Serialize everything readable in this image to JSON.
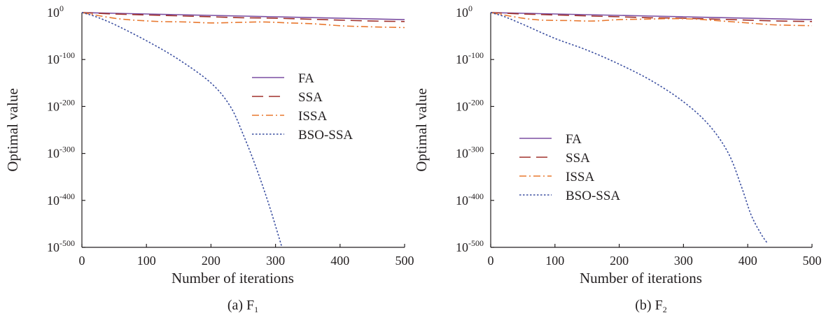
{
  "chart_data": [
    {
      "type": "line",
      "caption_prefix": "(a) F",
      "caption_sub": "1",
      "xlabel": "Number of iterations",
      "ylabel": "Optimal value",
      "yscale": "log",
      "xlim": [
        0,
        500
      ],
      "ylim_exp": [
        -500,
        0
      ],
      "xticks": [
        "0",
        "100",
        "200",
        "300",
        "400",
        "500"
      ],
      "yticks": [
        {
          "base": "10",
          "exp": "0",
          "value": 0
        },
        {
          "base": "10",
          "exp": "-100",
          "value": -100
        },
        {
          "base": "10",
          "exp": "-200",
          "value": -200
        },
        {
          "base": "10",
          "exp": "-300",
          "value": -300
        },
        {
          "base": "10",
          "exp": "-400",
          "value": -400
        },
        {
          "base": "10",
          "exp": "-500",
          "value": -500
        }
      ],
      "legend_position": "center-right",
      "series": [
        {
          "name": "FA",
          "color": "#7b4fa2",
          "dash": "solid",
          "x": [
            0,
            50,
            100,
            150,
            200,
            250,
            300,
            350,
            400,
            450,
            500
          ],
          "y_exp": [
            0,
            -1.5,
            -3,
            -4.5,
            -6,
            -7.5,
            -9,
            -10.5,
            -12,
            -13.5,
            -15
          ]
        },
        {
          "name": "SSA",
          "color": "#a0302b",
          "dash": "dashed",
          "x": [
            0,
            50,
            100,
            150,
            200,
            250,
            300,
            350,
            400,
            450,
            500
          ],
          "y_exp": [
            0,
            -3,
            -5,
            -7,
            -9,
            -11,
            -12,
            -14,
            -16,
            -18,
            -19
          ]
        },
        {
          "name": "ISSA",
          "color": "#e8782f",
          "dash": "dashdot",
          "x": [
            0,
            20,
            50,
            80,
            120,
            160,
            200,
            240,
            280,
            320,
            360,
            400,
            440,
            500
          ],
          "y_exp": [
            0,
            -5,
            -12,
            -16,
            -19,
            -20,
            -22,
            -21,
            -20,
            -22,
            -24,
            -28,
            -30,
            -32
          ]
        },
        {
          "name": "BSO-SSA",
          "color": "#3a4ea0",
          "dash": "dotted",
          "x": [
            0,
            20,
            50,
            100,
            150,
            200,
            230,
            250,
            270,
            290,
            310
          ],
          "y_exp": [
            0,
            -8,
            -25,
            -60,
            -100,
            -150,
            -200,
            -260,
            -330,
            -410,
            -500
          ]
        }
      ]
    },
    {
      "type": "line",
      "caption_prefix": "(b) F",
      "caption_sub": "2",
      "xlabel": "Number of iterations",
      "ylabel": "Optimal value",
      "yscale": "log",
      "xlim": [
        0,
        500
      ],
      "ylim_exp": [
        -500,
        0
      ],
      "xticks": [
        "0",
        "100",
        "200",
        "300",
        "400",
        "500"
      ],
      "yticks": [
        {
          "base": "10",
          "exp": "0",
          "value": 0
        },
        {
          "base": "10",
          "exp": "-100",
          "value": -100
        },
        {
          "base": "10",
          "exp": "-200",
          "value": -200
        },
        {
          "base": "10",
          "exp": "-300",
          "value": -300
        },
        {
          "base": "10",
          "exp": "-400",
          "value": -400
        },
        {
          "base": "10",
          "exp": "-500",
          "value": -500
        }
      ],
      "legend_position": "center-left",
      "series": [
        {
          "name": "FA",
          "color": "#7b4fa2",
          "dash": "solid",
          "x": [
            0,
            50,
            100,
            150,
            200,
            250,
            300,
            350,
            400,
            450,
            500
          ],
          "y_exp": [
            0,
            -1.5,
            -3,
            -4.5,
            -6,
            -7.5,
            -9,
            -10.5,
            -12,
            -13.5,
            -15
          ]
        },
        {
          "name": "SSA",
          "color": "#a0302b",
          "dash": "dashed",
          "x": [
            0,
            50,
            100,
            150,
            200,
            250,
            300,
            350,
            400,
            450,
            500
          ],
          "y_exp": [
            0,
            -3,
            -5,
            -7,
            -9,
            -11,
            -12,
            -14,
            -16,
            -18,
            -19
          ]
        },
        {
          "name": "ISSA",
          "color": "#e8782f",
          "dash": "dashdot",
          "x": [
            0,
            20,
            50,
            80,
            120,
            160,
            200,
            240,
            280,
            320,
            360,
            400,
            440,
            500
          ],
          "y_exp": [
            0,
            -5,
            -12,
            -16,
            -17,
            -18,
            -15,
            -14,
            -13,
            -14,
            -18,
            -22,
            -26,
            -28
          ]
        },
        {
          "name": "BSO-SSA",
          "color": "#3a4ea0",
          "dash": "dotted",
          "x": [
            0,
            20,
            50,
            100,
            150,
            200,
            250,
            300,
            340,
            370,
            390,
            405,
            420,
            430
          ],
          "y_exp": [
            0,
            -8,
            -25,
            -55,
            -80,
            -110,
            -145,
            -190,
            -240,
            -300,
            -370,
            -430,
            -470,
            -490
          ]
        }
      ]
    }
  ]
}
